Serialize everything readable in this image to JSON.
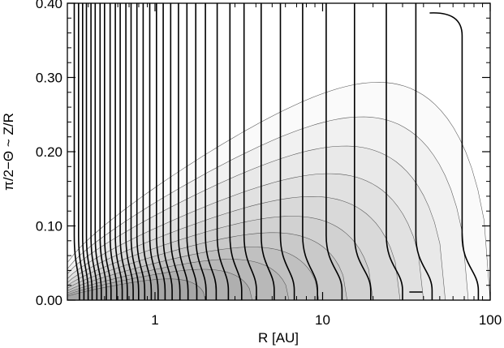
{
  "chart_data": {
    "type": "contour",
    "xlabel": "R [AU]",
    "ylabel": "π/2−Θ ~ Z/R",
    "x_scale": "log",
    "xlim": [
      0.3,
      100
    ],
    "ylim": [
      0.0,
      0.4
    ],
    "x_ticks": [
      {
        "value": 1,
        "label": "1"
      },
      {
        "value": 10,
        "label": "10"
      },
      {
        "value": 100,
        "label": "100"
      }
    ],
    "y_ticks": [
      {
        "value": 0.0,
        "label": "0.00"
      },
      {
        "value": 0.1,
        "label": "0.10"
      },
      {
        "value": 0.2,
        "label": "0.20"
      },
      {
        "value": 0.3,
        "label": "0.30"
      },
      {
        "value": 0.4,
        "label": "0.40"
      }
    ],
    "grid": false,
    "legend": "none",
    "shading": {
      "description_levels_count": 11,
      "colors": [
        "#fafafa",
        "#f1f1f1",
        "#e9e9e9",
        "#e1e1e1",
        "#d9d9d9",
        "#d1d1d1",
        "#c9c9c9",
        "#c0c0c0",
        "#b8b8b8",
        "#afafaf",
        "#a6a6a6"
      ],
      "midplane_edge_R": [
        100,
        74,
        54,
        40,
        29,
        20,
        14,
        9.5,
        6.3,
        3.8,
        2.0
      ],
      "apex_height": [
        0.41,
        0.345,
        0.29,
        0.238,
        0.195,
        0.158,
        0.127,
        0.1,
        0.077,
        0.058,
        0.04
      ]
    },
    "vertical_contours_R": [
      0.33,
      0.35,
      0.37,
      0.39,
      0.415,
      0.44,
      0.47,
      0.5,
      0.54,
      0.58,
      0.62,
      0.67,
      0.72,
      0.78,
      0.85,
      0.93,
      1.02,
      1.12,
      1.24,
      1.38,
      1.55,
      1.75,
      2.0,
      2.35,
      2.8,
      3.4,
      4.3,
      5.6,
      7.6,
      10.5,
      15.5,
      24,
      36,
      68
    ]
  },
  "colors": {
    "axis": "#000000",
    "contour_line": "#000000",
    "shade_contour": "#555555"
  }
}
